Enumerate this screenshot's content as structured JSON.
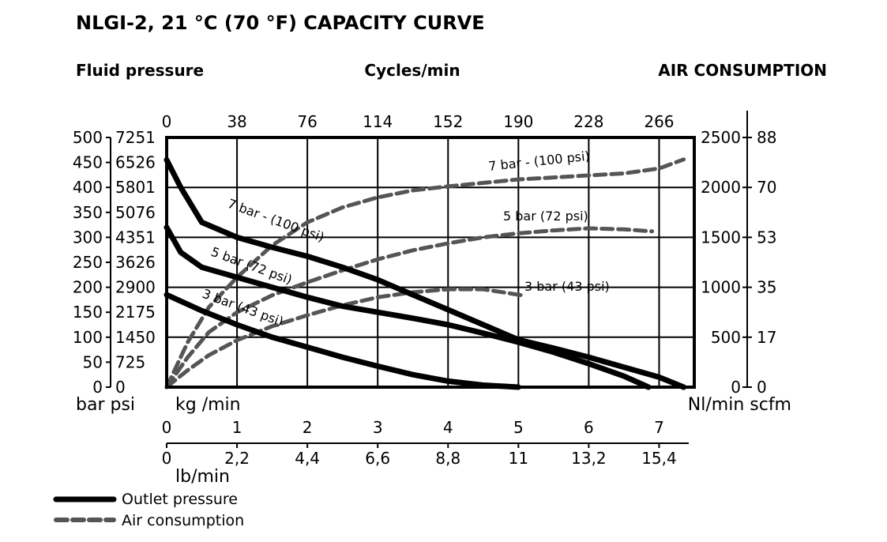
{
  "colors": {
    "outlet": "#000000",
    "air": "#555555",
    "grid": "#000000"
  },
  "chart_data": {
    "type": "line",
    "title": "NLGI-2, 21 °C (70 °F) CAPACITY CURVE",
    "left_header": "Fluid pressure",
    "center_header": "Cycles/min",
    "right_header": "AIR CONSUMPTION",
    "x_primary": {
      "label": "kg /min",
      "ticks": [
        "0",
        "1",
        "2",
        "3",
        "4",
        "5",
        "6",
        "7"
      ],
      "range": [
        0,
        7.5
      ],
      "grid": true
    },
    "x_secondary": {
      "label": "lb/min",
      "ticks": [
        "0",
        "2,2",
        "4,4",
        "6,6",
        "8,8",
        "11",
        "13,2",
        "15,4"
      ]
    },
    "x_top": {
      "ticks": [
        "0",
        "38",
        "76",
        "114",
        "152",
        "190",
        "228",
        "266"
      ]
    },
    "y_left": {
      "unit_label": "bar psi",
      "range": [
        0,
        500
      ],
      "bar_ticks": [
        "0",
        "50",
        "100",
        "150",
        "200",
        "250",
        "300",
        "350",
        "400",
        "450",
        "500"
      ],
      "psi_ticks": [
        "0",
        "725",
        "1450",
        "2175",
        "2900",
        "3626",
        "4351",
        "5076",
        "5801",
        "6526",
        "7251"
      ]
    },
    "y_right": {
      "unit_label": "Nl/min scfm",
      "range": [
        0,
        2500
      ],
      "nl_ticks": [
        "0",
        "500",
        "1000",
        "1500",
        "2000",
        "2500"
      ],
      "scfm_ticks": [
        "0",
        "17",
        "35",
        "53",
        "70",
        "88"
      ]
    },
    "grid": true,
    "legend": {
      "position": "bottom-left",
      "items": [
        {
          "label": "Outlet pressure",
          "style": "solid"
        },
        {
          "label": "Air consumption",
          "style": "dashed"
        }
      ]
    },
    "series": [
      {
        "name": "7 bar - (100 psi)",
        "kind": "outlet",
        "axis": "left",
        "x": [
          0,
          0.2,
          0.5,
          1.0,
          1.5,
          2.0,
          2.5,
          3.0,
          3.5,
          4.0,
          4.5,
          5.0,
          5.5,
          6.0,
          6.5,
          7.0,
          7.35
        ],
        "y": [
          455,
          400,
          330,
          300,
          280,
          262,
          240,
          215,
          185,
          155,
          125,
          95,
          78,
          60,
          40,
          20,
          0
        ]
      },
      {
        "name": "5 bar (72 psi)",
        "kind": "outlet",
        "axis": "left",
        "x": [
          0,
          0.2,
          0.5,
          1.0,
          1.5,
          2.0,
          2.5,
          3.0,
          3.5,
          4.0,
          4.5,
          5.0,
          5.5,
          6.0,
          6.5,
          6.85
        ],
        "y": [
          320,
          270,
          240,
          220,
          200,
          180,
          162,
          150,
          138,
          125,
          108,
          90,
          70,
          47,
          22,
          0
        ]
      },
      {
        "name": "3 bar (43 psi)",
        "kind": "outlet",
        "axis": "left",
        "x": [
          0,
          0.5,
          1.0,
          1.5,
          2.0,
          2.5,
          3.0,
          3.5,
          4.0,
          4.5,
          5.0
        ],
        "y": [
          185,
          153,
          125,
          100,
          80,
          60,
          42,
          25,
          12,
          4,
          0
        ]
      },
      {
        "name": "7 bar - (100 psi)",
        "kind": "air",
        "axis": "right",
        "x": [
          0,
          0.3,
          0.6,
          1.0,
          1.5,
          2.0,
          2.5,
          3.0,
          3.5,
          4.0,
          4.5,
          5.0,
          5.5,
          6.0,
          6.5,
          7.0,
          7.35
        ],
        "y": [
          0,
          450,
          800,
          1100,
          1420,
          1650,
          1800,
          1900,
          1970,
          2010,
          2045,
          2080,
          2100,
          2120,
          2140,
          2190,
          2280
        ]
      },
      {
        "name": "5 bar (72 psi)",
        "kind": "air",
        "axis": "right",
        "x": [
          0,
          0.3,
          0.6,
          1.0,
          1.5,
          2.0,
          2.5,
          3.0,
          3.5,
          4.0,
          4.5,
          5.0,
          5.5,
          6.0,
          6.5,
          6.9
        ],
        "y": [
          0,
          300,
          550,
          750,
          920,
          1050,
          1170,
          1280,
          1370,
          1440,
          1500,
          1540,
          1570,
          1590,
          1580,
          1560
        ]
      },
      {
        "name": "3 bar (43 psi)",
        "kind": "air",
        "axis": "right",
        "x": [
          0,
          0.3,
          0.6,
          1.0,
          1.5,
          2.0,
          2.5,
          3.0,
          3.5,
          4.0,
          4.5,
          5.05
        ],
        "y": [
          0,
          170,
          320,
          470,
          610,
          720,
          820,
          900,
          950,
          980,
          980,
          920
        ]
      }
    ]
  }
}
